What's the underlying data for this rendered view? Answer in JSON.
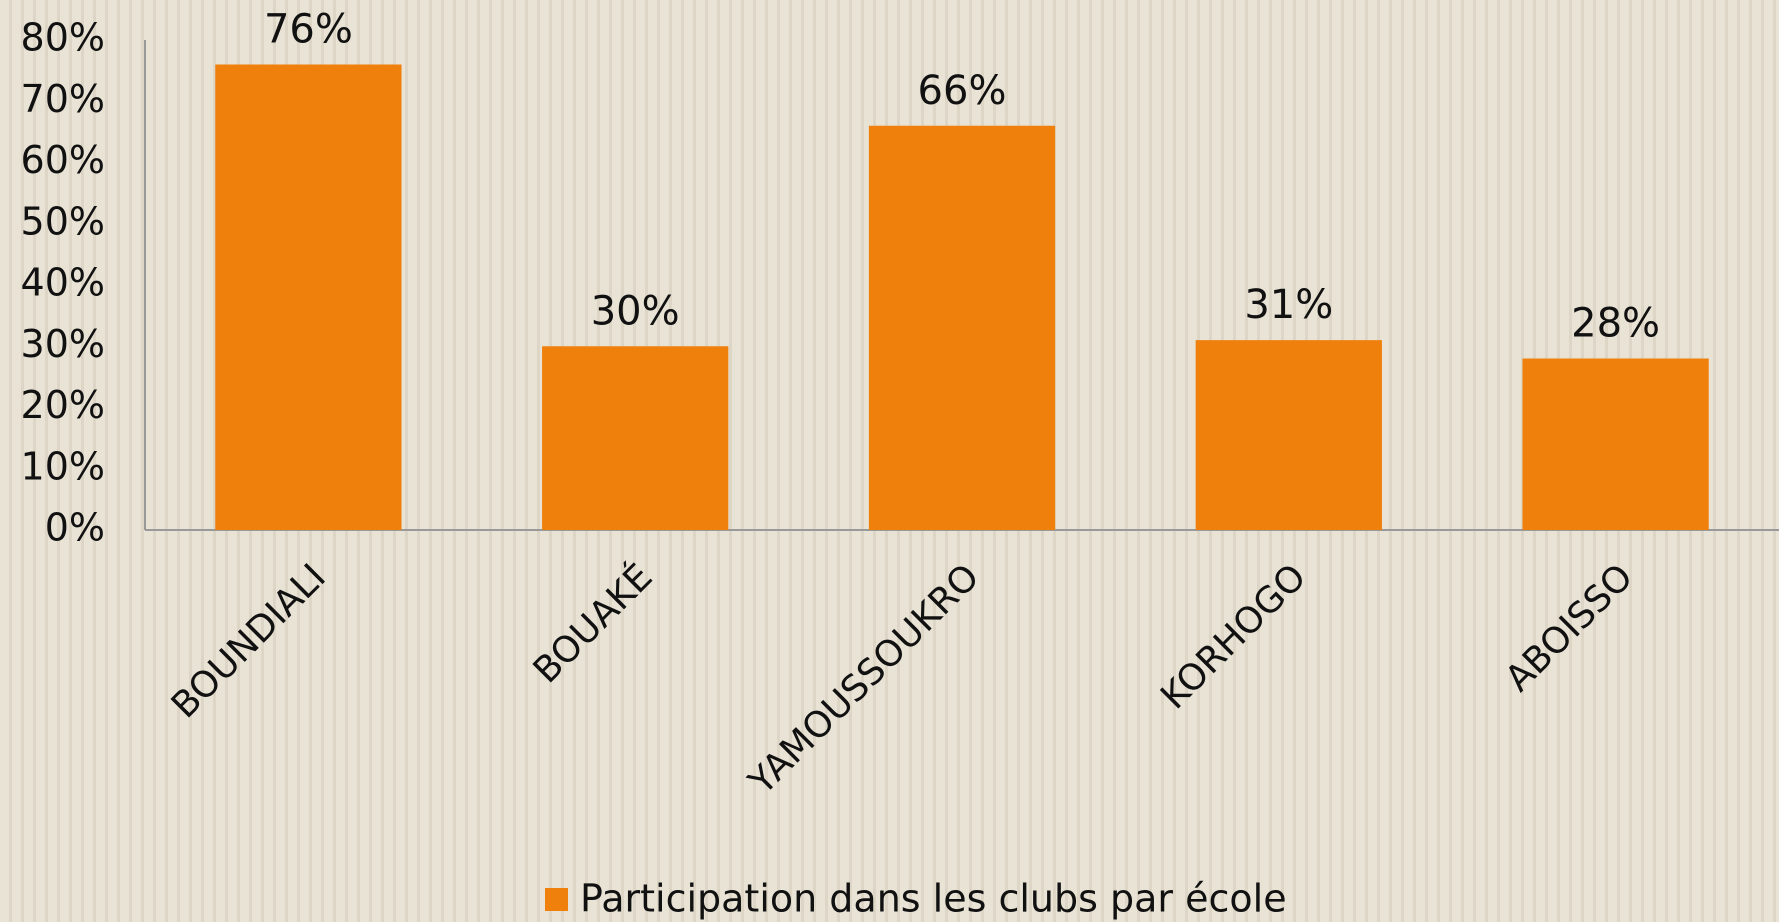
{
  "chart_data": {
    "type": "bar",
    "categories": [
      "BOUNDIALI",
      "BOUAKÉ",
      "YAMOUSSOUKRO",
      "KORHOGO",
      "ABOISSO"
    ],
    "series": [
      {
        "name": "Participation dans les clubs par école",
        "color": "#f0800c",
        "values": [
          76,
          30,
          66,
          31,
          28
        ],
        "value_labels": [
          "76%",
          "30%",
          "66%",
          "31%",
          "28%"
        ]
      }
    ],
    "ylim": [
      0,
      80
    ],
    "yticks": [
      {
        "value": 0,
        "label": "0%"
      },
      {
        "value": 10,
        "label": "10%"
      },
      {
        "value": 20,
        "label": "20%"
      },
      {
        "value": 30,
        "label": "30%"
      },
      {
        "value": 40,
        "label": "40%"
      },
      {
        "value": 50,
        "label": "50%"
      },
      {
        "value": 60,
        "label": "60%"
      },
      {
        "value": 70,
        "label": "70%"
      },
      {
        "value": 80,
        "label": "80%"
      }
    ],
    "grid": false,
    "legend": "bottom"
  }
}
